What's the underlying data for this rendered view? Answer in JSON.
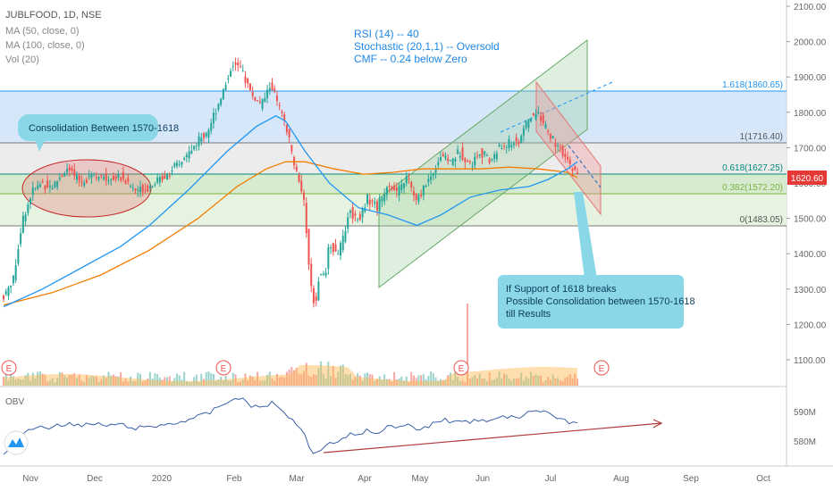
{
  "header": {
    "symbol_line": "JUBLFOOD, 1D, NSE",
    "indicators": [
      "MA (50, close, 0)",
      "MA (100, close, 0)",
      "Vol (20)"
    ]
  },
  "annotations": {
    "stats": [
      "RSI (14)  -- 40",
      "Stochastic (20,1,1) -- Oversold",
      "CMF -- 0.24 below Zero"
    ],
    "consolidation_note": "Consolidation Between 1570-1618",
    "support_note": [
      "If Support of 1618 breaks",
      "Possible Consolidation between 1570-1618",
      "till Results"
    ],
    "earnings_marker": "E"
  },
  "fib_labels": [
    "1.618(1860.65)",
    "1(1716.40)",
    "0.618(1627.25)",
    "0.382(1572.20)",
    "0(1483.05)"
  ],
  "obv_label": "OBV",
  "colors": {
    "up": "#26a69a",
    "down": "#ef5350",
    "ma50": "#2196f3",
    "ma100": "#f57c00",
    "fib_upper_fill": "#cfe3f8",
    "fib_mid_fill": "#ebebeb",
    "fib_low_fill": "#dff0d8",
    "channel_green": "#7fbf7f",
    "channel_red": "#e57373",
    "callout": "#8ad7e8",
    "price_tag": "#e53935",
    "obv_line": "#3a5fa8",
    "obv_trend": "#b03a3a"
  },
  "chart_data": {
    "type": "candlestick",
    "symbol": "JUBLFOOD",
    "interval": "1D",
    "exchange": "NSE",
    "last_price": "1620.60",
    "x_ticks": [
      "Nov",
      "Dec",
      "2020",
      "Feb",
      "Mar",
      "Apr",
      "May",
      "Jun",
      "Jul",
      "Aug",
      "Sep",
      "Oct"
    ],
    "y_ticks": [
      "2100.00",
      "2000.00",
      "1900.00",
      "1800.00",
      "1700.00",
      "1600.00",
      "1500.00",
      "1400.00",
      "1300.00",
      "1200.00",
      "1100.00"
    ],
    "y_range": [
      1060,
      2110
    ],
    "fib_levels": [
      {
        "ratio": "1.618",
        "value": 1860.65
      },
      {
        "ratio": "1",
        "value": 1716.4
      },
      {
        "ratio": "0.618",
        "value": 1627.25
      },
      {
        "ratio": "0.382",
        "value": 1572.2
      },
      {
        "ratio": "0",
        "value": 1483.05
      }
    ],
    "price_path": [
      [
        0,
        1280
      ],
      [
        2,
        1330
      ],
      [
        3,
        1420
      ],
      [
        4,
        1500
      ],
      [
        6,
        1580
      ],
      [
        8,
        1600
      ],
      [
        10,
        1590
      ],
      [
        13,
        1640
      ],
      [
        16,
        1600
      ],
      [
        18,
        1630
      ],
      [
        21,
        1610
      ],
      [
        24,
        1620
      ],
      [
        27,
        1580
      ],
      [
        30,
        1590
      ],
      [
        33,
        1620
      ],
      [
        36,
        1650
      ],
      [
        39,
        1700
      ],
      [
        42,
        1750
      ],
      [
        44,
        1820
      ],
      [
        46,
        1890
      ],
      [
        47,
        1940
      ],
      [
        49,
        1920
      ],
      [
        51,
        1850
      ],
      [
        53,
        1820
      ],
      [
        55,
        1880
      ],
      [
        56,
        1840
      ],
      [
        58,
        1760
      ],
      [
        59,
        1700
      ],
      [
        60,
        1640
      ],
      [
        61,
        1600
      ],
      [
        62,
        1520
      ],
      [
        63,
        1330
      ],
      [
        64,
        1250
      ],
      [
        65,
        1350
      ],
      [
        66,
        1330
      ],
      [
        67,
        1430
      ],
      [
        69,
        1400
      ],
      [
        71,
        1520
      ],
      [
        73,
        1500
      ],
      [
        75,
        1560
      ],
      [
        77,
        1530
      ],
      [
        79,
        1600
      ],
      [
        81,
        1570
      ],
      [
        83,
        1620
      ],
      [
        85,
        1540
      ],
      [
        86,
        1580
      ],
      [
        88,
        1620
      ],
      [
        90,
        1680
      ],
      [
        92,
        1660
      ],
      [
        94,
        1690
      ],
      [
        96,
        1650
      ],
      [
        98,
        1690
      ],
      [
        100,
        1660
      ],
      [
        102,
        1700
      ],
      [
        104,
        1710
      ],
      [
        106,
        1720
      ],
      [
        108,
        1780
      ],
      [
        110,
        1800
      ],
      [
        112,
        1740
      ],
      [
        114,
        1700
      ],
      [
        116,
        1660
      ],
      [
        117,
        1640
      ],
      [
        118,
        1620.6
      ]
    ],
    "ma50": [
      [
        0,
        1250
      ],
      [
        8,
        1300
      ],
      [
        16,
        1360
      ],
      [
        24,
        1420
      ],
      [
        30,
        1480
      ],
      [
        38,
        1580
      ],
      [
        46,
        1690
      ],
      [
        52,
        1760
      ],
      [
        56,
        1790
      ],
      [
        58,
        1775
      ],
      [
        62,
        1690
      ],
      [
        67,
        1600
      ],
      [
        73,
        1530
      ],
      [
        79,
        1510
      ],
      [
        85,
        1480
      ],
      [
        90,
        1510
      ],
      [
        96,
        1560
      ],
      [
        102,
        1580
      ],
      [
        108,
        1590
      ],
      [
        112,
        1610
      ],
      [
        116,
        1640
      ],
      [
        118,
        1660
      ]
    ],
    "ma100": [
      [
        0,
        1255
      ],
      [
        10,
        1290
      ],
      [
        20,
        1340
      ],
      [
        30,
        1410
      ],
      [
        40,
        1500
      ],
      [
        48,
        1590
      ],
      [
        54,
        1640
      ],
      [
        58,
        1660
      ],
      [
        62,
        1660
      ],
      [
        68,
        1640
      ],
      [
        74,
        1625
      ],
      [
        80,
        1630
      ],
      [
        86,
        1640
      ],
      [
        92,
        1640
      ],
      [
        98,
        1640
      ],
      [
        104,
        1645
      ],
      [
        110,
        1640
      ],
      [
        116,
        1630
      ],
      [
        118,
        1615
      ]
    ],
    "obv": {
      "y_ticks": [
        "590M",
        "580M"
      ],
      "trend": "rising"
    }
  }
}
